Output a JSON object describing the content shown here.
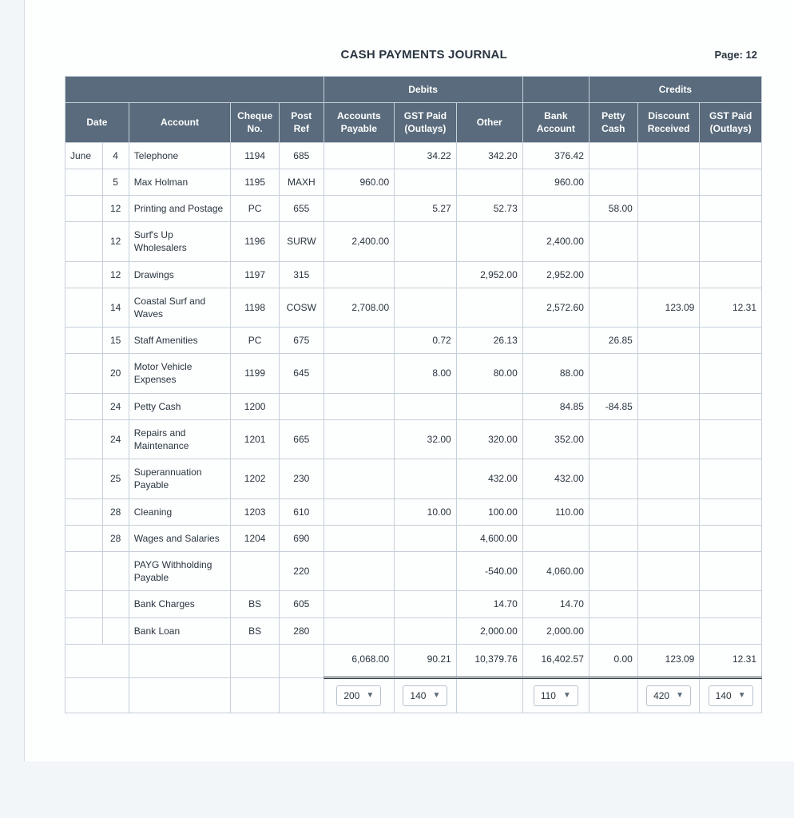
{
  "title": "CASH PAYMENTS JOURNAL",
  "page_label": "Page: 12",
  "headers": {
    "group_debits": "Debits",
    "group_credits": "Credits",
    "date": "Date",
    "account": "Account",
    "cheque_no": "Cheque No.",
    "post_ref": "Post Ref",
    "accounts_payable": "Accounts Payable",
    "gst_paid_outlays": "GST Paid (Outlays)",
    "other": "Other",
    "bank_account": "Bank Account",
    "petty_cash": "Petty Cash",
    "discount_received": "Discount Received",
    "gst_paid_outlays_cr": "GST Paid (Outlays)"
  },
  "month": "June",
  "rows": [
    {
      "day": "4",
      "account": "Telephone",
      "cheque": "1194",
      "ref": "685",
      "ap": "",
      "gst": "34.22",
      "other": "342.20",
      "bank": "376.42",
      "petty": "",
      "disc": "",
      "gst2": ""
    },
    {
      "day": "5",
      "account": "Max Holman",
      "cheque": "1195",
      "ref": "MAXH",
      "ap": "960.00",
      "gst": "",
      "other": "",
      "bank": "960.00",
      "petty": "",
      "disc": "",
      "gst2": ""
    },
    {
      "day": "12",
      "account": "Printing and Postage",
      "cheque": "PC",
      "ref": "655",
      "ap": "",
      "gst": "5.27",
      "other": "52.73",
      "bank": "",
      "petty": "58.00",
      "disc": "",
      "gst2": ""
    },
    {
      "day": "12",
      "account": "Surf's Up Wholesalers",
      "cheque": "1196",
      "ref": "SURW",
      "ap": "2,400.00",
      "gst": "",
      "other": "",
      "bank": "2,400.00",
      "petty": "",
      "disc": "",
      "gst2": ""
    },
    {
      "day": "12",
      "account": "Drawings",
      "cheque": "1197",
      "ref": "315",
      "ap": "",
      "gst": "",
      "other": "2,952.00",
      "bank": "2,952.00",
      "petty": "",
      "disc": "",
      "gst2": ""
    },
    {
      "day": "14",
      "account": "Coastal Surf and Waves",
      "cheque": "1198",
      "ref": "COSW",
      "ap": "2,708.00",
      "gst": "",
      "other": "",
      "bank": "2,572.60",
      "petty": "",
      "disc": "123.09",
      "gst2": "12.31"
    },
    {
      "day": "15",
      "account": "Staff Amenities",
      "cheque": "PC",
      "ref": "675",
      "ap": "",
      "gst": "0.72",
      "other": "26.13",
      "bank": "",
      "petty": "26.85",
      "disc": "",
      "gst2": ""
    },
    {
      "day": "20",
      "account": "Motor Vehicle Expenses",
      "cheque": "1199",
      "ref": "645",
      "ap": "",
      "gst": "8.00",
      "other": "80.00",
      "bank": "88.00",
      "petty": "",
      "disc": "",
      "gst2": ""
    },
    {
      "day": "24",
      "account": "Petty Cash",
      "cheque": "1200",
      "ref": "",
      "ap": "",
      "gst": "",
      "other": "",
      "bank": "84.85",
      "petty": "-84.85",
      "disc": "",
      "gst2": ""
    },
    {
      "day": "24",
      "account": "Repairs and Maintenance",
      "cheque": "1201",
      "ref": "665",
      "ap": "",
      "gst": "32.00",
      "other": "320.00",
      "bank": "352.00",
      "petty": "",
      "disc": "",
      "gst2": ""
    },
    {
      "day": "25",
      "account": "Superannuation Payable",
      "cheque": "1202",
      "ref": "230",
      "ap": "",
      "gst": "",
      "other": "432.00",
      "bank": "432.00",
      "petty": "",
      "disc": "",
      "gst2": ""
    },
    {
      "day": "28",
      "account": "Cleaning",
      "cheque": "1203",
      "ref": "610",
      "ap": "",
      "gst": "10.00",
      "other": "100.00",
      "bank": "110.00",
      "petty": "",
      "disc": "",
      "gst2": ""
    },
    {
      "day": "28",
      "account": "Wages and Salaries",
      "cheque": "1204",
      "ref": "690",
      "ap": "",
      "gst": "",
      "other": "4,600.00",
      "bank": "",
      "petty": "",
      "disc": "",
      "gst2": ""
    },
    {
      "day": "",
      "account": "PAYG Withholding Payable",
      "cheque": "",
      "ref": "220",
      "ap": "",
      "gst": "",
      "other": "-540.00",
      "bank": "4,060.00",
      "petty": "",
      "disc": "",
      "gst2": ""
    },
    {
      "day": "",
      "account": "Bank Charges",
      "cheque": "BS",
      "ref": "605",
      "ap": "",
      "gst": "",
      "other": "14.70",
      "bank": "14.70",
      "petty": "",
      "disc": "",
      "gst2": ""
    },
    {
      "day": "",
      "account": "Bank Loan",
      "cheque": "BS",
      "ref": "280",
      "ap": "",
      "gst": "",
      "other": "2,000.00",
      "bank": "2,000.00",
      "petty": "",
      "disc": "",
      "gst2": ""
    }
  ],
  "totals": {
    "ap": "6,068.00",
    "gst": "90.21",
    "other": "10,379.76",
    "bank": "16,402.57",
    "petty": "0.00",
    "disc": "123.09",
    "gst2": "12.31"
  },
  "selects": {
    "ap": "200",
    "gst": "140",
    "bank": "110",
    "disc": "420",
    "gst2": "140"
  },
  "colors": {
    "header_bg": "#596b7c",
    "header_fg": "#ffffff",
    "border": "#c6d0da",
    "text": "#2a3540",
    "page_bg": "#fdfefe"
  }
}
